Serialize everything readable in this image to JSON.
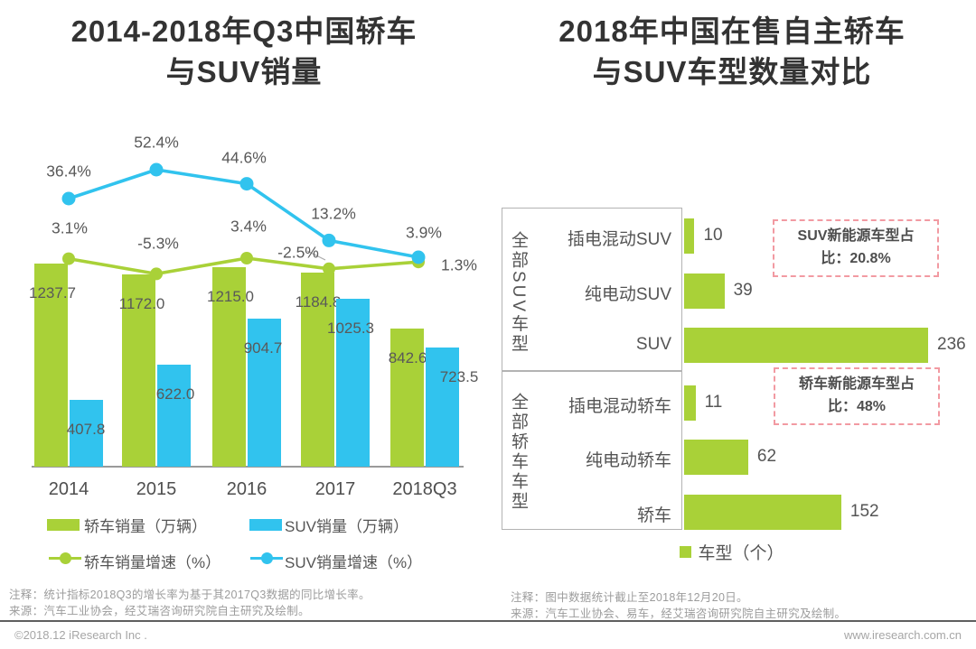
{
  "footer": {
    "left": "©2018.12 iResearch Inc .",
    "right": "www.iresearch.com.cn"
  },
  "colors": {
    "green": "#a9d138",
    "blue": "#31c3ee",
    "annotation_border": "#f29aa2",
    "annotation_text": "#4d4d4d",
    "axis": "#9a9a9a",
    "box_border": "#b3b3b3"
  },
  "chart_data": [
    {
      "type": "bar",
      "subtype": "grouped-bars-with-growth-lines",
      "title": "2014-2018年Q3中国轿车与SUV销量",
      "title_lines": [
        "2014-2018年Q3中国轿车",
        "与SUV销量"
      ],
      "categories": [
        "2014",
        "2015",
        "2016",
        "2017",
        "2018Q3"
      ],
      "series": [
        {
          "name": "轿车销量（万辆）",
          "type": "bar",
          "color": "#a9d138",
          "values": [
            1237.7,
            1172.0,
            1215.0,
            1184.8,
            842.6
          ]
        },
        {
          "name": "SUV销量（万辆）",
          "type": "bar",
          "color": "#31c3ee",
          "values": [
            407.8,
            622.0,
            904.7,
            1025.3,
            723.5
          ]
        },
        {
          "name": "轿车销量增速（%）",
          "type": "line",
          "color": "#a9d138",
          "values": [
            3.1,
            -5.3,
            3.4,
            -2.5,
            1.3
          ],
          "labels": [
            "3.1%",
            "-5.3%",
            "3.4%",
            "-2.5%",
            "1.3%"
          ]
        },
        {
          "name": "SUV销量增速（%）",
          "type": "line",
          "color": "#31c3ee",
          "values": [
            36.4,
            52.4,
            44.6,
            13.2,
            3.9
          ],
          "labels": [
            "36.4%",
            "52.4%",
            "44.6%",
            "13.2%",
            "3.9%"
          ]
        }
      ],
      "legend_position": "bottom",
      "grid": false,
      "note": "注释：统计指标2018Q3的增长率为基于其2017Q3数据的同比增长率。",
      "source": "来源：汽车工业协会，经艾瑞咨询研究院自主研究及绘制。"
    },
    {
      "type": "bar",
      "orientation": "horizontal",
      "title": "2018年中国在售自主轿车与SUV车型数量对比",
      "title_lines": [
        "2018年中国在售自主轿车",
        "与SUV车型数量对比"
      ],
      "bar_color": "#a9d138",
      "legend": "车型（个）",
      "legend_position": "bottom",
      "grid": false,
      "xlim": [
        0,
        250
      ],
      "groups": [
        {
          "label": "全部SUV车型",
          "rows": [
            {
              "label": "插电混动SUV",
              "value": 10
            },
            {
              "label": "纯电动SUV",
              "value": 39
            },
            {
              "label": "SUV",
              "value": 236
            }
          ],
          "annotation": "SUV新能源车型占比：20.8%"
        },
        {
          "label": "全部轿车车型",
          "rows": [
            {
              "label": "插电混动轿车",
              "value": 11
            },
            {
              "label": "纯电动轿车",
              "value": 62
            },
            {
              "label": "轿车",
              "value": 152
            }
          ],
          "annotation": "轿车新能源车型占比：48%"
        }
      ],
      "note": "注释：图中数据统计截止至2018年12月20日。",
      "source": "来源：汽车工业协会、易车，经艾瑞咨询研究院自主研究及绘制。"
    }
  ]
}
